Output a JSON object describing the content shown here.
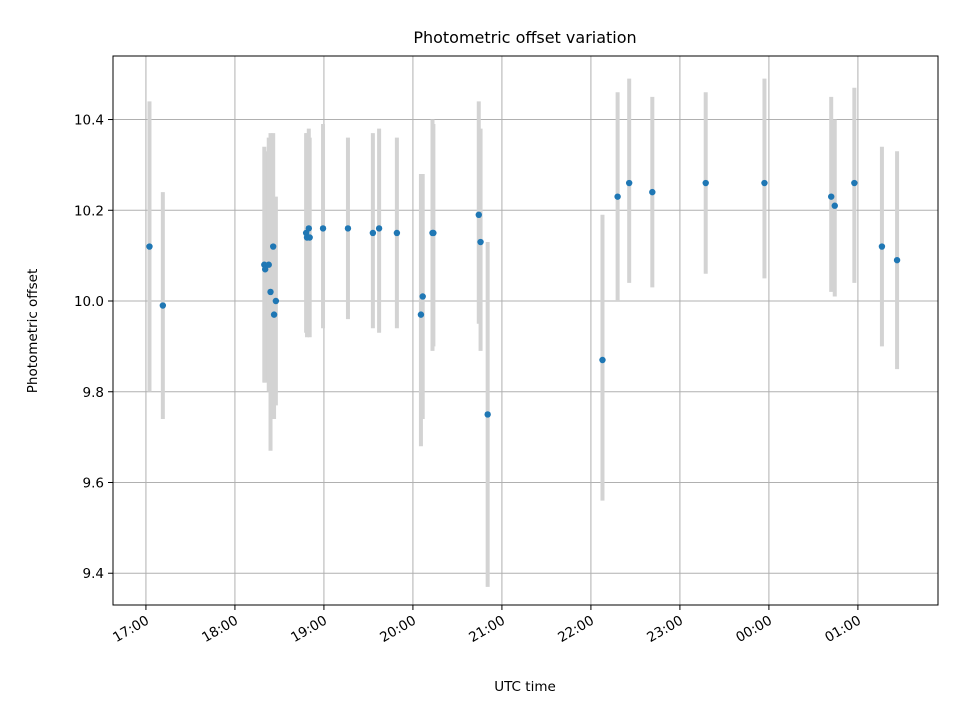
{
  "chart_data": {
    "type": "scatter",
    "title": "Photometric offset variation",
    "xlabel": "UTC time",
    "ylabel": "Photometric offset",
    "x_unit": "hours since 17:00 UTC (values beyond 24 wrap past midnight)",
    "xlim": [
      -0.37,
      8.9
    ],
    "ylim": [
      9.33,
      10.54
    ],
    "x_ticks": [
      {
        "label": "17:00",
        "value": 0
      },
      {
        "label": "18:00",
        "value": 1
      },
      {
        "label": "19:00",
        "value": 2
      },
      {
        "label": "20:00",
        "value": 3
      },
      {
        "label": "21:00",
        "value": 4
      },
      {
        "label": "22:00",
        "value": 5
      },
      {
        "label": "23:00",
        "value": 6
      },
      {
        "label": "00:00",
        "value": 7
      },
      {
        "label": "01:00",
        "value": 8
      }
    ],
    "y_ticks": [
      9.4,
      9.6,
      9.8,
      10.0,
      10.2,
      10.4
    ],
    "y_tick_labels": [
      "9.4",
      "9.6",
      "9.8",
      "10.0",
      "10.2",
      "10.4"
    ],
    "grid": true,
    "point_color": "#1f77b4",
    "errorbar_color": "#d3d3d3",
    "series": [
      {
        "points": [
          {
            "x": 0.04,
            "y": 10.12,
            "ylo": 9.8,
            "yhi": 10.44
          },
          {
            "x": 0.19,
            "y": 9.99,
            "ylo": 9.74,
            "yhi": 10.24
          },
          {
            "x": 1.33,
            "y": 10.08,
            "ylo": 9.82,
            "yhi": 10.34
          },
          {
            "x": 1.34,
            "y": 10.07,
            "ylo": 9.82,
            "yhi": 10.33
          },
          {
            "x": 1.38,
            "y": 10.08,
            "ylo": 9.8,
            "yhi": 10.36
          },
          {
            "x": 1.4,
            "y": 10.02,
            "ylo": 9.67,
            "yhi": 10.37
          },
          {
            "x": 1.43,
            "y": 10.12,
            "ylo": 9.88,
            "yhi": 10.37
          },
          {
            "x": 1.44,
            "y": 9.97,
            "ylo": 9.74,
            "yhi": 10.2
          },
          {
            "x": 1.46,
            "y": 10.0,
            "ylo": 9.77,
            "yhi": 10.23
          },
          {
            "x": 1.8,
            "y": 10.15,
            "ylo": 9.93,
            "yhi": 10.37
          },
          {
            "x": 1.81,
            "y": 10.14,
            "ylo": 9.92,
            "yhi": 10.37
          },
          {
            "x": 1.83,
            "y": 10.16,
            "ylo": 9.93,
            "yhi": 10.38
          },
          {
            "x": 1.84,
            "y": 10.14,
            "ylo": 9.92,
            "yhi": 10.36
          },
          {
            "x": 1.99,
            "y": 10.16,
            "ylo": 9.94,
            "yhi": 10.39
          },
          {
            "x": 2.27,
            "y": 10.16,
            "ylo": 9.96,
            "yhi": 10.36
          },
          {
            "x": 2.55,
            "y": 10.15,
            "ylo": 9.94,
            "yhi": 10.37
          },
          {
            "x": 2.62,
            "y": 10.16,
            "ylo": 9.93,
            "yhi": 10.38
          },
          {
            "x": 2.82,
            "y": 10.15,
            "ylo": 9.94,
            "yhi": 10.36
          },
          {
            "x": 3.09,
            "y": 9.97,
            "ylo": 9.68,
            "yhi": 10.28
          },
          {
            "x": 3.11,
            "y": 10.01,
            "ylo": 9.74,
            "yhi": 10.28
          },
          {
            "x": 3.22,
            "y": 10.15,
            "ylo": 9.89,
            "yhi": 10.4
          },
          {
            "x": 3.23,
            "y": 10.15,
            "ylo": 9.9,
            "yhi": 10.39
          },
          {
            "x": 3.74,
            "y": 10.19,
            "ylo": 9.95,
            "yhi": 10.44
          },
          {
            "x": 3.76,
            "y": 10.13,
            "ylo": 9.89,
            "yhi": 10.38
          },
          {
            "x": 3.84,
            "y": 9.75,
            "ylo": 9.37,
            "yhi": 10.13
          },
          {
            "x": 5.13,
            "y": 9.87,
            "ylo": 9.56,
            "yhi": 10.19
          },
          {
            "x": 5.3,
            "y": 10.23,
            "ylo": 10.0,
            "yhi": 10.46
          },
          {
            "x": 5.43,
            "y": 10.26,
            "ylo": 10.04,
            "yhi": 10.49
          },
          {
            "x": 5.69,
            "y": 10.24,
            "ylo": 10.03,
            "yhi": 10.45
          },
          {
            "x": 6.29,
            "y": 10.26,
            "ylo": 10.06,
            "yhi": 10.46
          },
          {
            "x": 6.95,
            "y": 10.26,
            "ylo": 10.05,
            "yhi": 10.49
          },
          {
            "x": 7.7,
            "y": 10.23,
            "ylo": 10.02,
            "yhi": 10.45
          },
          {
            "x": 7.74,
            "y": 10.21,
            "ylo": 10.01,
            "yhi": 10.4
          },
          {
            "x": 7.96,
            "y": 10.26,
            "ylo": 10.04,
            "yhi": 10.47
          },
          {
            "x": 8.27,
            "y": 10.12,
            "ylo": 9.9,
            "yhi": 10.34
          },
          {
            "x": 8.44,
            "y": 10.09,
            "ylo": 9.85,
            "yhi": 10.33
          }
        ]
      }
    ]
  }
}
